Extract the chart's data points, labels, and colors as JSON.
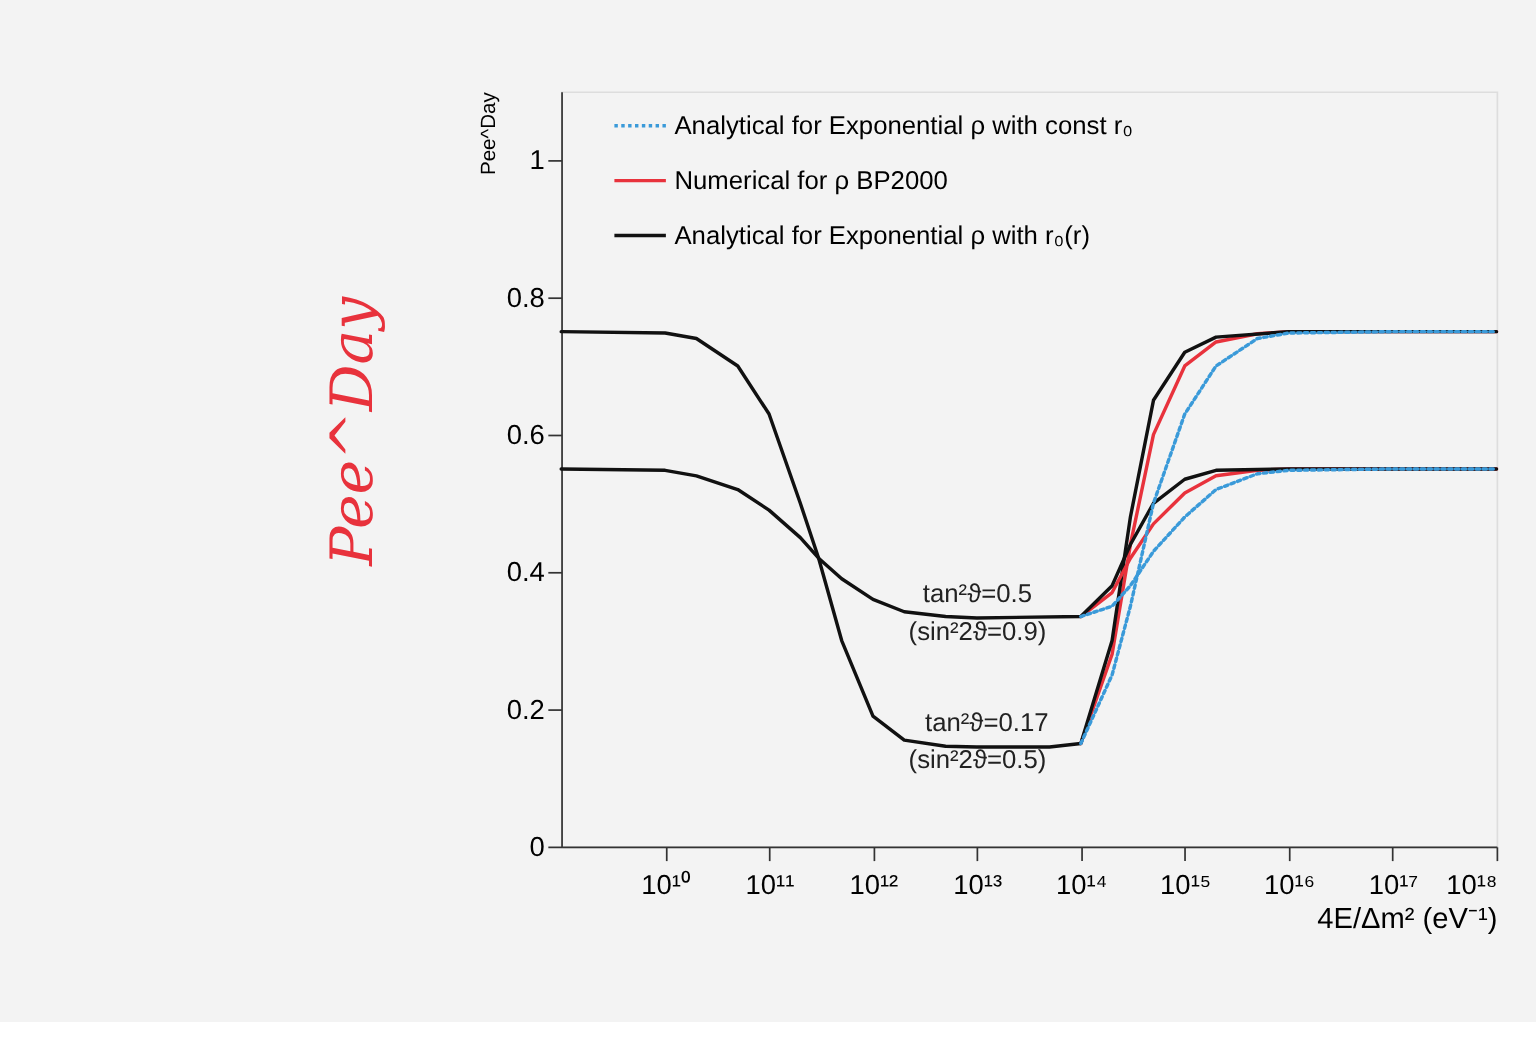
{
  "chart_data": {
    "type": "line",
    "xlabel": "4E/Δm² (eV⁻¹)",
    "ylabel": "Pee^Day",
    "log": "x",
    "legend": "top",
    "grid": false,
    "xlim": [
      1000000000.0,
      1e+18
    ],
    "ylim": [
      0,
      1.1
    ],
    "xticks": [
      {
        "value": 10000000000.0,
        "label": "10¹⁰"
      },
      {
        "value": 100000000000.0,
        "label": "10¹¹"
      },
      {
        "value": 1000000000000.0,
        "label": "10¹²"
      },
      {
        "value": 10000000000000.0,
        "label": "10¹³"
      },
      {
        "value": 100000000000000.0,
        "label": "10¹⁴"
      },
      {
        "value": 1000000000000000.0,
        "label": "10¹⁵"
      },
      {
        "value": 1e+16,
        "label": "10¹⁶"
      },
      {
        "value": 1e+17,
        "label": "10¹⁷"
      },
      {
        "value": 1e+18,
        "label": "10¹⁸"
      }
    ],
    "yticks": [
      0,
      0.2,
      0.4,
      0.6,
      0.8,
      1
    ],
    "series": [
      {
        "name": "Analytical for Exponential ρ with const r₀",
        "color": "#3a9ad9",
        "line_style": "dotted",
        "x": [
          100000000000000.0,
          200000000000000.0,
          300000000000000.0,
          500000000000000.0,
          1000000000000000.0,
          2000000000000000.0,
          5000000000000000.0,
          1e+16,
          1e+17,
          1e+18
        ],
        "values": [
          0.15,
          0.25,
          0.35,
          0.5,
          0.63,
          0.7,
          0.74,
          0.748,
          0.75,
          0.75
        ]
      },
      {
        "name": "Numerical for ρ BP2000",
        "color": "#e8323c",
        "line_style": "solid",
        "x": [
          100000000000000.0,
          200000000000000.0,
          300000000000000.0,
          500000000000000.0,
          1000000000000000.0,
          2000000000000000.0,
          5000000000000000.0,
          1e+16,
          1e+18
        ],
        "values": [
          0.15,
          0.28,
          0.44,
          0.6,
          0.7,
          0.735,
          0.747,
          0.75,
          0.75
        ]
      },
      {
        "name": "Analytical for Exponential ρ  with r₀(r)",
        "color": "#111111",
        "line_style": "solid",
        "x": [
          1000000000.0,
          10000000000.0,
          20000000000.0,
          50000000000.0,
          100000000000.0,
          200000000000.0,
          300000000000.0,
          500000000000.0,
          1000000000000.0,
          2000000000000.0,
          5000000000000.0,
          10000000000000.0,
          50000000000000.0,
          100000000000000.0,
          200000000000000.0,
          300000000000000.0,
          500000000000000.0,
          1000000000000000.0,
          2000000000000000.0,
          1e+16,
          1e+18
        ],
        "values": [
          0.75,
          0.748,
          0.74,
          0.7,
          0.63,
          0.5,
          0.42,
          0.3,
          0.19,
          0.155,
          0.146,
          0.145,
          0.145,
          0.15,
          0.3,
          0.48,
          0.65,
          0.72,
          0.742,
          0.75,
          0.75
        ]
      },
      {
        "color": "#3a9ad9",
        "line_style": "dotted",
        "x": [
          100000000000000.0,
          200000000000000.0,
          300000000000000.0,
          500000000000000.0,
          1000000000000000.0,
          2000000000000000.0,
          5000000000000000.0,
          1e+16,
          1e+17,
          1e+18
        ],
        "values": [
          0.335,
          0.35,
          0.38,
          0.43,
          0.48,
          0.52,
          0.543,
          0.548,
          0.55,
          0.55
        ]
      },
      {
        "color": "#e8323c",
        "line_style": "solid",
        "x": [
          100000000000000.0,
          200000000000000.0,
          300000000000000.0,
          500000000000000.0,
          1000000000000000.0,
          2000000000000000.0,
          5000000000000000.0,
          1e+16,
          1e+18
        ],
        "values": [
          0.335,
          0.37,
          0.42,
          0.47,
          0.515,
          0.54,
          0.548,
          0.55,
          0.55
        ]
      },
      {
        "color": "#111111",
        "line_style": "solid",
        "x": [
          1000000000.0,
          10000000000.0,
          20000000000.0,
          50000000000.0,
          100000000000.0,
          200000000000.0,
          300000000000.0,
          500000000000.0,
          1000000000000.0,
          2000000000000.0,
          5000000000000.0,
          10000000000000.0,
          100000000000000.0,
          200000000000000.0,
          300000000000000.0,
          500000000000000.0,
          1000000000000000.0,
          2000000000000000.0,
          1e+16,
          1e+18
        ],
        "values": [
          0.55,
          0.548,
          0.54,
          0.52,
          0.49,
          0.45,
          0.42,
          0.39,
          0.36,
          0.342,
          0.335,
          0.333,
          0.335,
          0.38,
          0.44,
          0.5,
          0.535,
          0.548,
          0.55,
          0.55
        ]
      }
    ],
    "annotations": [
      "tan²ϑ=0.5",
      "(sin²2ϑ=0.9)",
      "tan²ϑ=0.17",
      "(sin²2ϑ=0.5)",
      "Pee^Day"
    ]
  }
}
